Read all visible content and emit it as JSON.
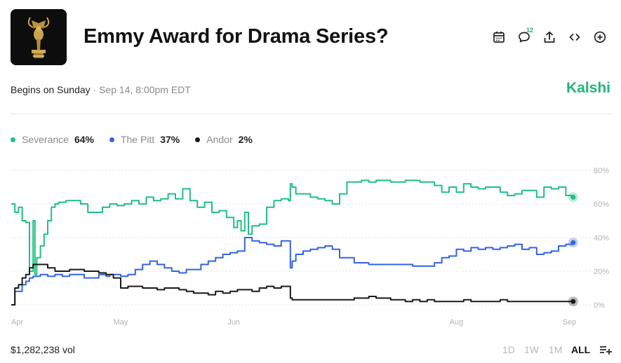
{
  "title": "Emmy Award for Drama Series?",
  "subtitle": {
    "begins": "Begins on Sunday",
    "datetime": "Sep 14, 8:00pm EDT"
  },
  "brand": "Kalshi",
  "toolbar": {
    "comment_count": "12",
    "icons": [
      "calendar-icon",
      "comment-icon",
      "share-icon",
      "embed-icon",
      "add-icon"
    ]
  },
  "legend": [
    {
      "name": "Severance",
      "pct": "64%",
      "color": "#1fbf83"
    },
    {
      "name": "The Pitt",
      "pct": "37%",
      "color": "#3563e0"
    },
    {
      "name": "Andor",
      "pct": "2%",
      "color": "#1a1a1a"
    }
  ],
  "volume": "$1,282,238 vol",
  "ranges": [
    "1D",
    "1W",
    "1M",
    "ALL"
  ],
  "active_range": "ALL",
  "chart_data": {
    "type": "line",
    "xlabel": "",
    "ylabel": "",
    "ylim": [
      0,
      80
    ],
    "yticks": [
      "80%",
      "60%",
      "40%",
      "20%",
      "0%"
    ],
    "ytick_values": [
      80,
      60,
      40,
      20,
      0
    ],
    "xticks": [
      {
        "label": "Apr",
        "day": 0
      },
      {
        "label": "May",
        "day": 30
      },
      {
        "label": "Jun",
        "day": 61
      },
      {
        "label": "Aug",
        "day": 122
      },
      {
        "label": "Sep",
        "day": 153
      }
    ],
    "xlim": [
      0,
      155
    ],
    "series": [
      {
        "name": "Severance",
        "color": "#1fbf83",
        "x": [
          0,
          1,
          2,
          3,
          4,
          5,
          6,
          6.5,
          7,
          8,
          9,
          10,
          11,
          12,
          13,
          14,
          15,
          17,
          19,
          21,
          23,
          25,
          27,
          29,
          31,
          33,
          35,
          37,
          39,
          41,
          43,
          45,
          47,
          49,
          51,
          53,
          55,
          57,
          59,
          61,
          62,
          63,
          64,
          65,
          66,
          68,
          70,
          72,
          74,
          76,
          76.5,
          77,
          78,
          80,
          82,
          84,
          86,
          88,
          90,
          92,
          94,
          96,
          98,
          100,
          102,
          104,
          106,
          108,
          110,
          112,
          114,
          116,
          118,
          120,
          122,
          124,
          126,
          128,
          130,
          132,
          134,
          136,
          138,
          140,
          142,
          144,
          146,
          148,
          150,
          152,
          154
        ],
        "y": [
          60,
          55,
          58,
          50,
          49,
          20,
          50,
          18,
          28,
          35,
          42,
          50,
          58,
          60,
          61,
          61,
          62,
          62,
          60,
          55,
          55,
          58,
          60,
          59,
          60,
          62,
          60,
          64,
          62,
          63,
          66,
          63,
          69,
          62,
          58,
          61,
          55,
          56,
          52,
          46,
          50,
          44,
          55,
          42,
          47,
          48,
          58,
          62,
          63,
          62,
          72,
          70,
          66,
          66,
          64,
          63,
          62,
          60,
          66,
          73,
          73,
          74,
          73,
          74,
          74,
          73,
          73,
          74,
          74,
          73,
          73,
          71,
          67,
          70,
          67,
          72,
          70,
          69,
          70,
          70,
          67,
          65,
          66,
          68,
          68,
          64,
          70,
          69,
          70,
          65,
          64
        ]
      },
      {
        "name": "The Pitt",
        "color": "#3563e0",
        "x": [
          0,
          1,
          2,
          3,
          4,
          5,
          6,
          7,
          8,
          10,
          12,
          14,
          16,
          18,
          20,
          22,
          24,
          26,
          27,
          28,
          30,
          32,
          34,
          36,
          38,
          40,
          42,
          44,
          46,
          48,
          50,
          52,
          54,
          56,
          58,
          60,
          62,
          64,
          66,
          68,
          70,
          72,
          74,
          76,
          76.5,
          77,
          78,
          80,
          82,
          84,
          86,
          88,
          90,
          92,
          94,
          96,
          98,
          100,
          102,
          104,
          106,
          108,
          110,
          112,
          114,
          116,
          118,
          120,
          122,
          124,
          126,
          128,
          130,
          132,
          134,
          136,
          138,
          140,
          142,
          144,
          146,
          148,
          150,
          152,
          154
        ],
        "y": [
          0,
          8,
          8,
          12,
          14,
          16,
          17,
          17,
          18,
          17,
          18,
          17,
          18,
          18,
          16,
          16,
          18,
          17,
          18,
          18,
          17,
          18,
          21,
          24,
          26,
          24,
          22,
          20,
          19,
          21,
          21,
          24,
          26,
          28,
          30,
          31,
          32,
          40,
          38,
          37,
          36,
          35,
          38,
          38,
          22,
          26,
          30,
          32,
          33,
          34,
          35,
          33,
          28,
          28,
          25,
          25,
          24,
          24,
          24,
          24,
          24,
          24,
          23,
          23,
          23,
          25,
          28,
          29,
          33,
          32,
          34,
          33,
          34,
          33,
          34,
          35,
          36,
          33,
          34,
          30,
          31,
          32,
          35,
          36,
          37
        ]
      },
      {
        "name": "Andor",
        "color": "#1a1a1a",
        "x": [
          0,
          1,
          2,
          3,
          4,
          5,
          6,
          8,
          10,
          12,
          14,
          16,
          18,
          20,
          22,
          24,
          26,
          28,
          30,
          32,
          34,
          36,
          38,
          40,
          42,
          44,
          46,
          48,
          50,
          52,
          54,
          56,
          58,
          60,
          62,
          64,
          66,
          68,
          70,
          72,
          74,
          76,
          76.5,
          77,
          78,
          80,
          82,
          84,
          86,
          88,
          90,
          92,
          94,
          96,
          98,
          100,
          102,
          104,
          106,
          108,
          110,
          112,
          114,
          116,
          118,
          120,
          122,
          124,
          126,
          128,
          130,
          132,
          134,
          136,
          138,
          140,
          142,
          144,
          146,
          148,
          150,
          152,
          154
        ],
        "y": [
          0,
          10,
          12,
          16,
          18,
          22,
          24,
          24,
          22,
          20,
          20,
          21,
          21,
          20,
          20,
          19,
          18,
          16,
          10,
          11,
          11,
          10,
          10,
          9,
          10,
          10,
          9,
          8,
          7,
          7,
          6,
          8,
          7,
          8,
          9,
          9,
          8,
          10,
          11,
          10,
          11,
          11,
          4,
          3,
          3,
          3,
          3,
          3,
          3,
          3,
          3,
          3,
          4,
          4,
          5,
          4,
          4,
          3,
          3,
          2,
          3,
          2,
          3,
          2,
          2,
          2,
          2,
          3,
          2,
          2,
          2,
          2,
          3,
          2,
          2,
          2,
          2,
          2,
          2,
          2,
          2,
          2,
          2
        ]
      }
    ]
  }
}
